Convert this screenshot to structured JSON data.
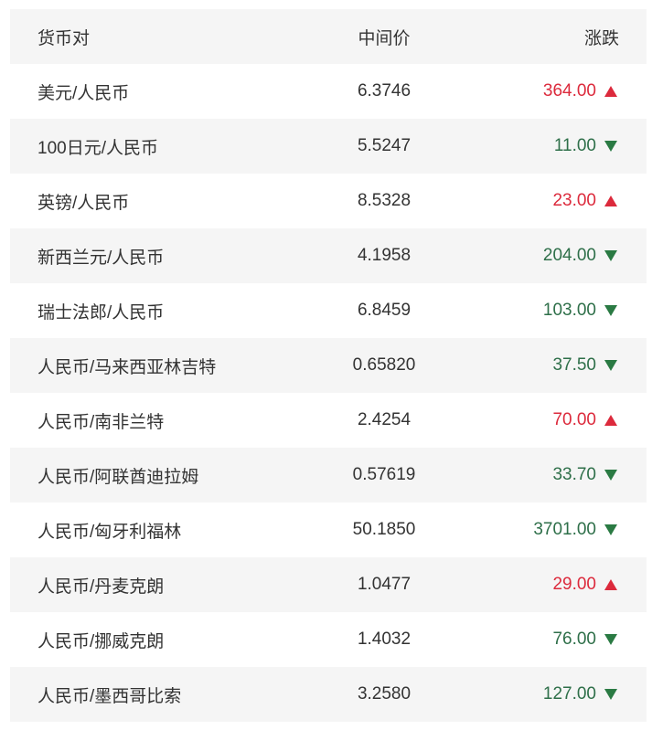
{
  "header": {
    "pair": "货币对",
    "mid": "中间价",
    "change": "涨跌"
  },
  "colors": {
    "up": "#dc2a3c",
    "down": "#2a7a43"
  },
  "rows": [
    {
      "pair": "美元/人民币",
      "mid": "6.3746",
      "change": "364.00",
      "dir": "up"
    },
    {
      "pair": "100日元/人民币",
      "mid": "5.5247",
      "change": "11.00",
      "dir": "down"
    },
    {
      "pair": "英镑/人民币",
      "mid": "8.5328",
      "change": "23.00",
      "dir": "up"
    },
    {
      "pair": "新西兰元/人民币",
      "mid": "4.1958",
      "change": "204.00",
      "dir": "down"
    },
    {
      "pair": "瑞士法郎/人民币",
      "mid": "6.8459",
      "change": "103.00",
      "dir": "down"
    },
    {
      "pair": "人民币/马来西亚林吉特",
      "mid": "0.65820",
      "change": "37.50",
      "dir": "down"
    },
    {
      "pair": "人民币/南非兰特",
      "mid": "2.4254",
      "change": "70.00",
      "dir": "up"
    },
    {
      "pair": "人民币/阿联酋迪拉姆",
      "mid": "0.57619",
      "change": "33.70",
      "dir": "down"
    },
    {
      "pair": "人民币/匈牙利福林",
      "mid": "50.1850",
      "change": "3701.00",
      "dir": "down"
    },
    {
      "pair": "人民币/丹麦克朗",
      "mid": "1.0477",
      "change": "29.00",
      "dir": "up"
    },
    {
      "pair": "人民币/挪威克朗",
      "mid": "1.4032",
      "change": "76.00",
      "dir": "down"
    },
    {
      "pair": "人民币/墨西哥比索",
      "mid": "3.2580",
      "change": "127.00",
      "dir": "down"
    }
  ]
}
